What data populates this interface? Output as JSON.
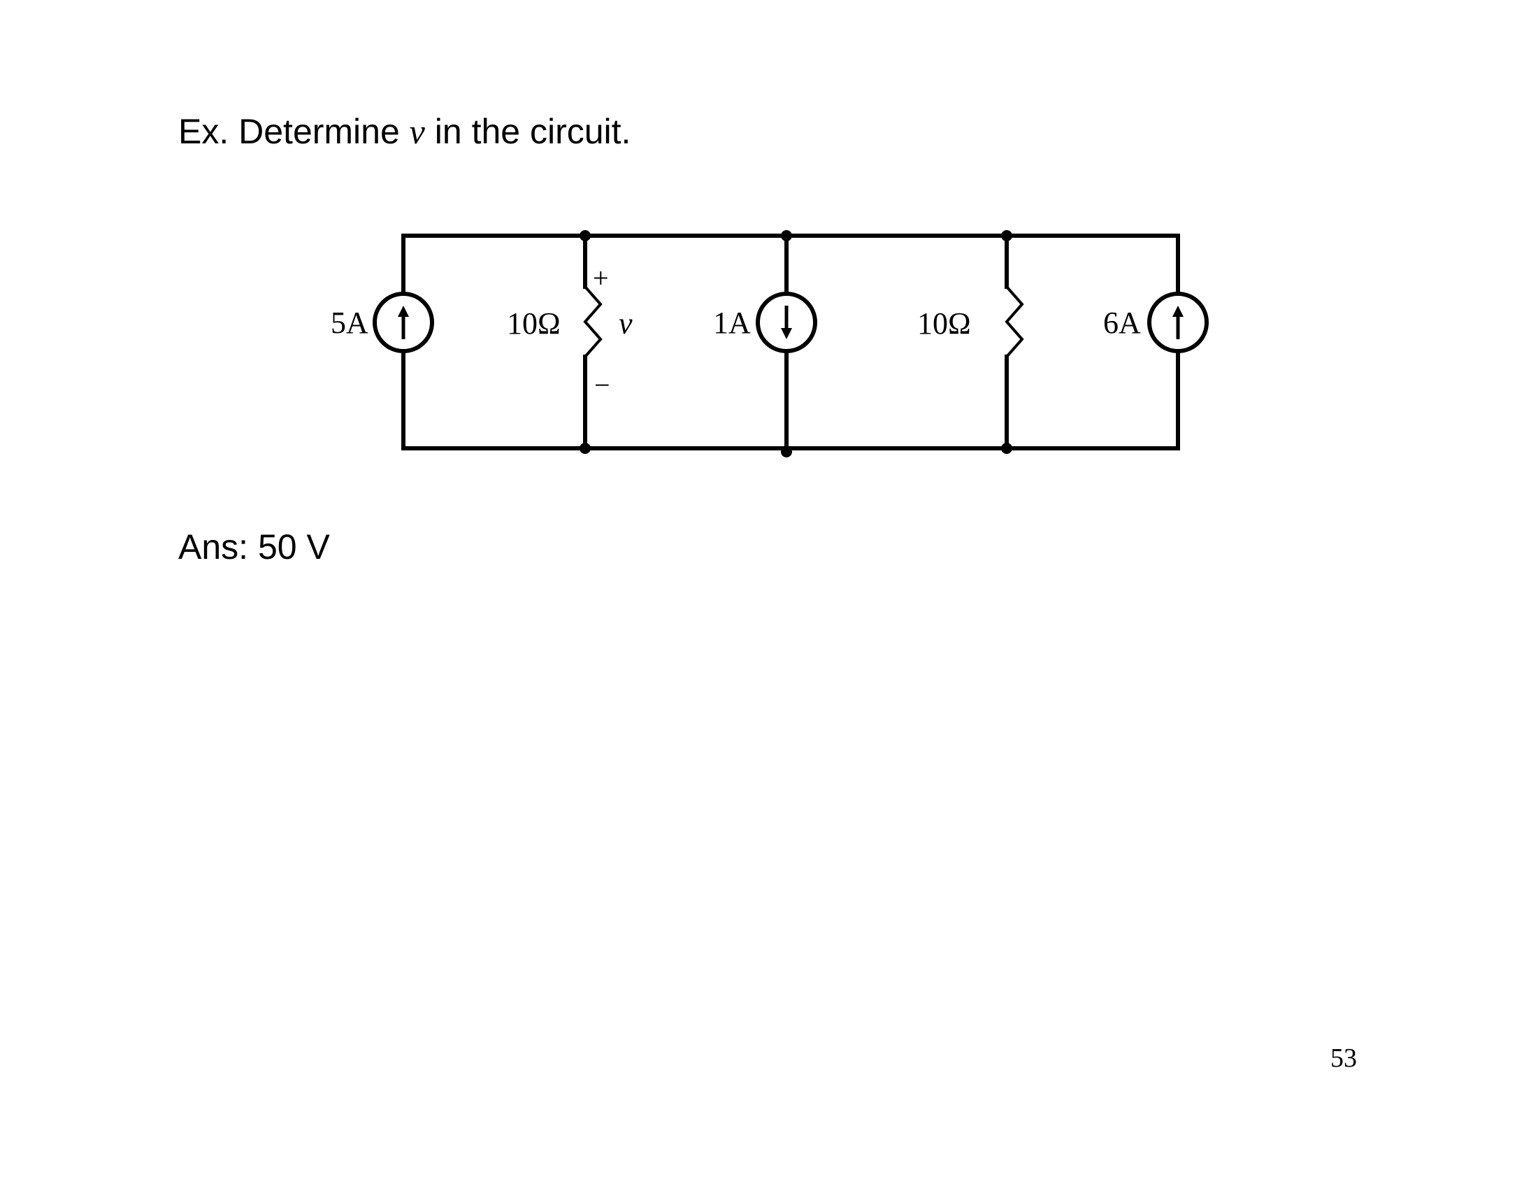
{
  "problem": {
    "prefix": "Ex. Determine ",
    "variable": "v",
    "suffix": " in the circuit."
  },
  "answer": "Ans: 50 V",
  "page_number": "53",
  "circuit": {
    "source_left_label": "5A",
    "resistor_left_label": "10Ω",
    "voltage_variable": "v",
    "plus_sign": "+",
    "minus_sign": "−",
    "source_middle_label": "1A",
    "resistor_right_label": "10Ω",
    "source_right_label": "6A"
  },
  "colors": {
    "ink": "#000000",
    "background": "#ffffff"
  },
  "icons": {
    "source_left_arrow": "arrow-up-icon",
    "source_middle_arrow": "arrow-down-icon",
    "source_right_arrow": "arrow-up-icon"
  }
}
